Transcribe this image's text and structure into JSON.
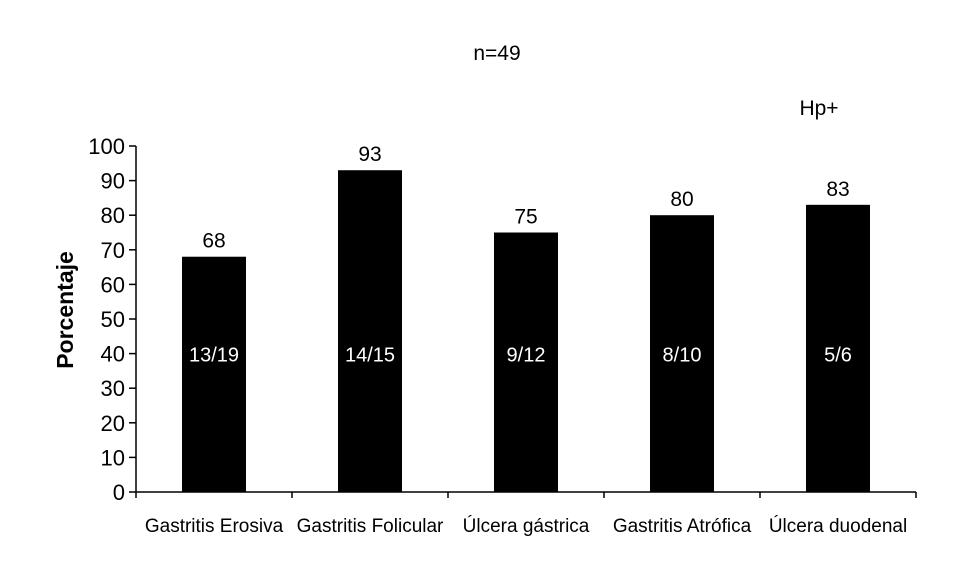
{
  "chart_data": {
    "type": "bar",
    "title": "n=49",
    "legend_label": "Hp+",
    "ylabel": "Porcentaje",
    "xlabel": "",
    "ylim": [
      0,
      100
    ],
    "y_ticks": [
      0,
      10,
      20,
      30,
      40,
      50,
      60,
      70,
      80,
      90,
      100
    ],
    "grid": false,
    "categories": [
      "Gastritis Erosiva",
      "Gastritis Folicular",
      "Úlcera gástrica",
      "Gastritis Atrófica",
      "Úlcera duodenal"
    ],
    "values": [
      68,
      93,
      75,
      80,
      83
    ],
    "value_labels": [
      "68",
      "93",
      "75",
      "80",
      "83"
    ],
    "inner_labels": [
      "13/19",
      "14/15",
      "9/12",
      "8/10",
      "5/6"
    ],
    "bar_color": "#000000"
  }
}
